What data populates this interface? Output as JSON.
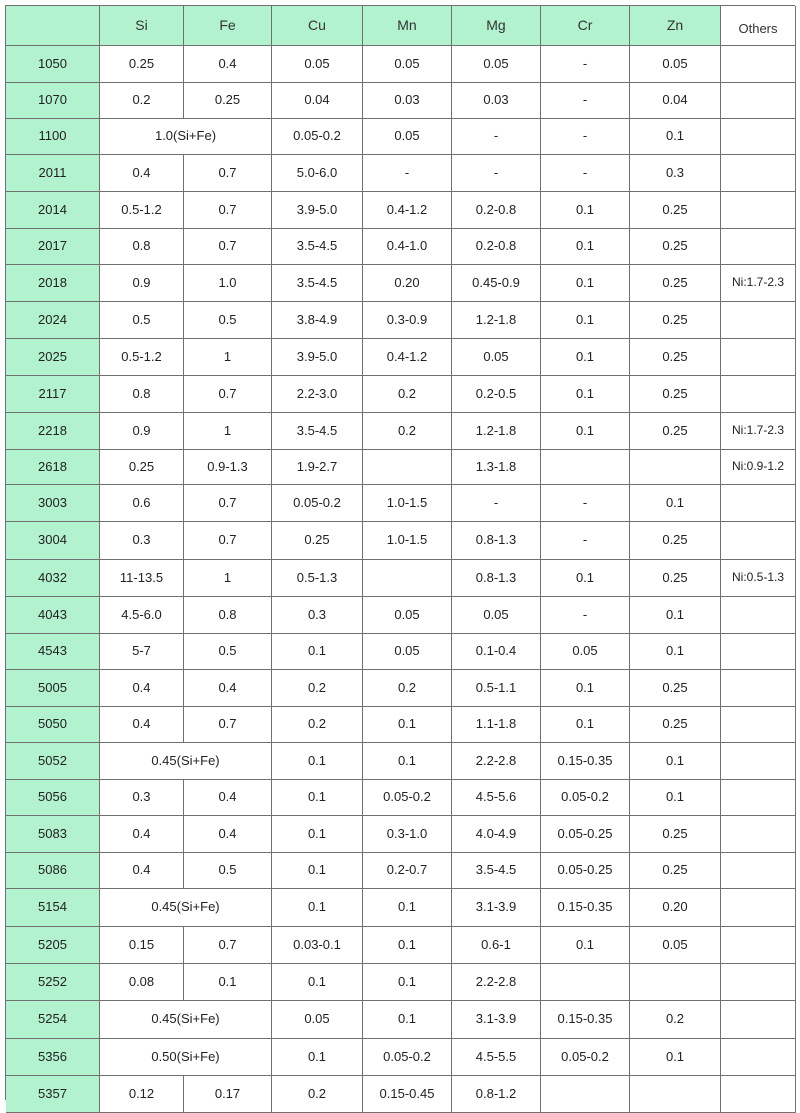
{
  "colors": {
    "header_bg": "#b2f2cf",
    "grade_bg": "#b2f2cf",
    "border": "#707070"
  },
  "header": [
    "",
    "Si",
    "Fe",
    "Cu",
    "Mn",
    "Mg",
    "Cr",
    "Zn",
    "Others"
  ],
  "rows": [
    {
      "grade": "1050",
      "cells": [
        "0.25",
        "0.4",
        "0.05",
        "0.05",
        "0.05",
        "-",
        "0.05",
        ""
      ]
    },
    {
      "grade": "1070",
      "cells": [
        "0.2",
        "0.25",
        "0.04",
        "0.03",
        "0.03",
        "-",
        "0.04",
        ""
      ]
    },
    {
      "grade": "1100",
      "merged_si_fe": "1.0(Si+Fe)",
      "cells": [
        "0.05-0.2",
        "0.05",
        "-",
        "-",
        "0.1",
        ""
      ]
    },
    {
      "grade": "2011",
      "cells": [
        "0.4",
        "0.7",
        "5.0-6.0",
        "-",
        "-",
        "-",
        "0.3",
        ""
      ]
    },
    {
      "grade": "2014",
      "cells": [
        "0.5-1.2",
        "0.7",
        "3.9-5.0",
        "0.4-1.2",
        "0.2-0.8",
        "0.1",
        "0.25",
        ""
      ]
    },
    {
      "grade": "2017",
      "cells": [
        "0.8",
        "0.7",
        "3.5-4.5",
        "0.4-1.0",
        "0.2-0.8",
        "0.1",
        "0.25",
        ""
      ]
    },
    {
      "grade": "2018",
      "cells": [
        "0.9",
        "1.0",
        "3.5-4.5",
        "0.20",
        "0.45-0.9",
        "0.1",
        "0.25",
        "Ni:1.7-2.3"
      ]
    },
    {
      "grade": "2024",
      "cells": [
        "0.5",
        "0.5",
        "3.8-4.9",
        "0.3-0.9",
        "1.2-1.8",
        "0.1",
        "0.25",
        ""
      ]
    },
    {
      "grade": "2025",
      "cells": [
        "0.5-1.2",
        "1",
        "3.9-5.0",
        "0.4-1.2",
        "0.05",
        "0.1",
        "0.25",
        ""
      ]
    },
    {
      "grade": "2117",
      "cells": [
        "0.8",
        "0.7",
        "2.2-3.0",
        "0.2",
        "0.2-0.5",
        "0.1",
        "0.25",
        ""
      ]
    },
    {
      "grade": "2218",
      "cells": [
        "0.9",
        "1",
        "3.5-4.5",
        "0.2",
        "1.2-1.8",
        "0.1",
        "0.25",
        "Ni:1.7-2.3"
      ]
    },
    {
      "grade": "2618",
      "cells": [
        "0.25",
        "0.9-1.3",
        "1.9-2.7",
        "",
        "1.3-1.8",
        "",
        "",
        "Ni:0.9-1.2"
      ]
    },
    {
      "grade": "3003",
      "cells": [
        "0.6",
        "0.7",
        "0.05-0.2",
        "1.0-1.5",
        "-",
        "-",
        "0.1",
        ""
      ]
    },
    {
      "grade": "3004",
      "cells": [
        "0.3",
        "0.7",
        "0.25",
        "1.0-1.5",
        "0.8-1.3",
        "-",
        "0.25",
        ""
      ]
    },
    {
      "grade": "4032",
      "cells": [
        "11-13.5",
        "1",
        "0.5-1.3",
        "",
        "0.8-1.3",
        "0.1",
        "0.25",
        "Ni:0.5-1.3"
      ]
    },
    {
      "grade": "4043",
      "cells": [
        "4.5-6.0",
        "0.8",
        "0.3",
        "0.05",
        "0.05",
        "-",
        "0.1",
        ""
      ]
    },
    {
      "grade": "4543",
      "cells": [
        "5-7",
        "0.5",
        "0.1",
        "0.05",
        "0.1-0.4",
        "0.05",
        "0.1",
        ""
      ]
    },
    {
      "grade": "5005",
      "cells": [
        "0.4",
        "0.4",
        "0.2",
        "0.2",
        "0.5-1.1",
        "0.1",
        "0.25",
        ""
      ]
    },
    {
      "grade": "5050",
      "cells": [
        "0.4",
        "0.7",
        "0.2",
        "0.1",
        "1.1-1.8",
        "0.1",
        "0.25",
        ""
      ]
    },
    {
      "grade": "5052",
      "merged_si_fe": "0.45(Si+Fe)",
      "cells": [
        "0.1",
        "0.1",
        "2.2-2.8",
        "0.15-0.35",
        "0.1",
        ""
      ]
    },
    {
      "grade": "5056",
      "cells": [
        "0.3",
        "0.4",
        "0.1",
        "0.05-0.2",
        "4.5-5.6",
        "0.05-0.2",
        "0.1",
        ""
      ]
    },
    {
      "grade": "5083",
      "cells": [
        "0.4",
        "0.4",
        "0.1",
        "0.3-1.0",
        "4.0-4.9",
        "0.05-0.25",
        "0.25",
        ""
      ]
    },
    {
      "grade": "5086",
      "cells": [
        "0.4",
        "0.5",
        "0.1",
        "0.2-0.7",
        "3.5-4.5",
        "0.05-0.25",
        "0.25",
        ""
      ]
    },
    {
      "grade": "5154",
      "merged_si_fe": "0.45(Si+Fe)",
      "cells": [
        "0.1",
        "0.1",
        "3.1-3.9",
        "0.15-0.35",
        "0.20",
        ""
      ]
    },
    {
      "grade": "5205",
      "cells": [
        "0.15",
        "0.7",
        "0.03-0.1",
        "0.1",
        "0.6-1",
        "0.1",
        "0.05",
        ""
      ]
    },
    {
      "grade": "5252",
      "cells": [
        "0.08",
        "0.1",
        "0.1",
        "0.1",
        "2.2-2.8",
        "",
        "",
        ""
      ]
    },
    {
      "grade": "5254",
      "merged_si_fe": "0.45(Si+Fe)",
      "cells": [
        "0.05",
        "0.1",
        "3.1-3.9",
        "0.15-0.35",
        "0.2",
        ""
      ]
    },
    {
      "grade": "5356",
      "merged_si_fe": "0.50(Si+Fe)",
      "cells": [
        "0.1",
        "0.05-0.2",
        "4.5-5.5",
        "0.05-0.2",
        "0.1",
        ""
      ]
    },
    {
      "grade": "5357",
      "cells": [
        "0.12",
        "0.17",
        "0.2",
        "0.15-0.45",
        "0.8-1.2",
        "",
        "",
        ""
      ]
    }
  ]
}
